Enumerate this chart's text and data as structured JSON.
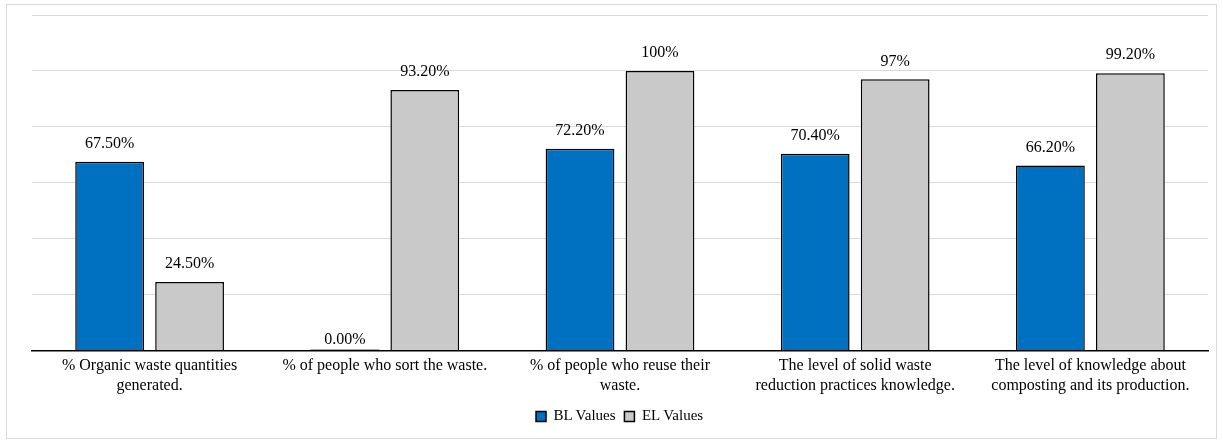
{
  "chart_data": {
    "type": "bar",
    "categories": [
      "% Organic waste quantities generated.",
      "% of people who sort the waste.",
      "% of people who reuse their waste.",
      "The level of solid waste reduction practices knowledge.",
      "The level of knowledge about composting and its production."
    ],
    "series": [
      {
        "name": "BL Values",
        "color": "#0070c0",
        "values": [
          67.5,
          0,
          72.2,
          70.4,
          66.2
        ],
        "value_labels": [
          "67.50%",
          "0.00%",
          "72.20%",
          "70.40%",
          "66.20%"
        ]
      },
      {
        "name": "EL Values",
        "color": "#c9c9c9",
        "values": [
          24.5,
          93.2,
          100,
          97,
          99.2
        ],
        "value_labels": [
          "24.50%",
          "93.20%",
          "100%",
          "97%",
          "99.20%"
        ]
      }
    ],
    "ylim": [
      0,
      120
    ],
    "tick_labels": "x",
    "grid": "y",
    "legend": "bottom"
  }
}
